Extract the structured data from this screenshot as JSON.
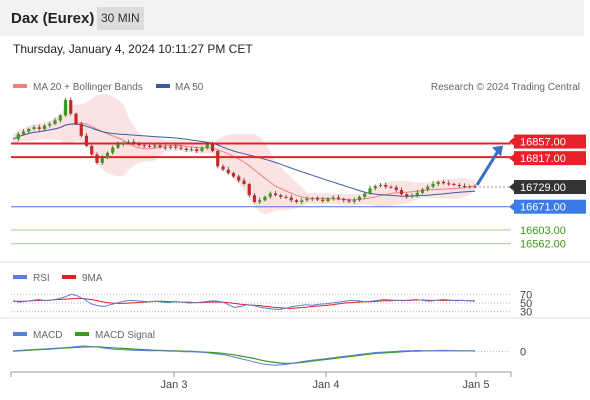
{
  "header": {
    "title": "Dax (Eurex)",
    "interval_button": "30 MIN"
  },
  "datetime": "Thursday, January 4, 2024 10:11:27 PM CET",
  "legend": {
    "bollinger_label": "MA 20 + Bollinger Bands",
    "ma50_label": "MA 50",
    "credit": "Research © 2024 Trading Central",
    "colors": {
      "bollinger": "#f08080",
      "ma50": "#3a5fa0"
    }
  },
  "rsi_legend": {
    "rsi_label": "RSI",
    "ma_label": "9MA",
    "rsi_color": "#5b7fd8",
    "ma_color": "#dd2222"
  },
  "macd_legend": {
    "macd_label": "MACD",
    "signal_label": "MACD Signal",
    "macd_color": "#5b7fd8",
    "signal_color": "#3a9a1a"
  },
  "chart_data": [
    {
      "type": "candlestick",
      "title": "Dax (Eurex)",
      "interval": "30 MIN",
      "ylim": [
        16520,
        17000
      ],
      "x_ticks": [
        "Jan 3",
        "Jan 4",
        "Jan 5"
      ],
      "price_path": [
        16870,
        16885,
        16892,
        16900,
        16905,
        16900,
        16910,
        16915,
        16925,
        16940,
        16985,
        16945,
        16915,
        16880,
        16850,
        16825,
        16800,
        16815,
        16830,
        16845,
        16855,
        16860,
        16862,
        16858,
        16852,
        16850,
        16848,
        16852,
        16846,
        16844,
        16848,
        16845,
        16842,
        16838,
        16840,
        16835,
        16845,
        16855,
        16835,
        16790,
        16780,
        16770,
        16760,
        16748,
        16738,
        16705,
        16685,
        16690,
        16700,
        16710,
        16705,
        16700,
        16698,
        16690,
        16685,
        16690,
        16694,
        16696,
        16692,
        16688,
        16695,
        16698,
        16694,
        16690,
        16686,
        16690,
        16700,
        16710,
        16725,
        16732,
        16735,
        16730,
        16728,
        16720,
        16708,
        16700,
        16704,
        16712,
        16722,
        16730,
        16738,
        16744,
        16740,
        16738,
        16735,
        16732,
        16730,
        16731,
        16729
      ],
      "levels": {
        "resistance": [
          16857.0,
          16817.0
        ],
        "current_price": 16729.0,
        "ma50_level": 16671.0,
        "support": [
          16603.0,
          16562.0
        ]
      },
      "level_labels": {
        "r1": "16857.00",
        "r2": "16817.00",
        "current": "16729.00",
        "ma50": "16671.00",
        "s1": "16603.00",
        "s2": "16562.00"
      },
      "level_colors": {
        "resistance": "#e8202a",
        "current": "#333333",
        "ma50": "#3b7be8",
        "support": "#3a9a1a"
      },
      "projection": "up"
    },
    {
      "type": "line",
      "name": "RSI",
      "y_ticks": [
        "70",
        "50",
        "30"
      ],
      "ylim": [
        20,
        80
      ],
      "rsi": [
        55,
        52,
        54,
        56,
        58,
        55,
        57,
        60,
        64,
        70,
        66,
        58,
        48,
        44,
        42,
        46,
        50,
        54,
        56,
        55,
        54,
        53,
        54,
        52,
        51,
        53,
        52,
        50,
        51,
        52,
        54,
        55,
        53,
        47,
        40,
        42,
        46,
        44,
        40,
        38,
        36,
        35,
        38,
        42,
        44,
        46,
        45,
        47,
        48,
        50,
        52,
        54,
        56,
        55,
        53,
        54,
        56,
        58,
        57,
        56,
        55,
        57,
        58,
        56,
        54,
        56,
        58,
        57,
        55,
        56,
        55,
        54
      ],
      "ma9": [
        54,
        54,
        54,
        55,
        56,
        56,
        57,
        58,
        59,
        60,
        61,
        60,
        58,
        55,
        52,
        50,
        49,
        49,
        50,
        51,
        52,
        53,
        54,
        54,
        53,
        53,
        52,
        52,
        51,
        51,
        52,
        52,
        52,
        51,
        49,
        47,
        46,
        45,
        44,
        42,
        40,
        39,
        38,
        38,
        39,
        40,
        42,
        43,
        44,
        46,
        48,
        50,
        51,
        52,
        53,
        53,
        54,
        55,
        55,
        56,
        56,
        56,
        57,
        57,
        56,
        56,
        56,
        56,
        56,
        56,
        55,
        55
      ]
    },
    {
      "type": "line",
      "name": "MACD",
      "y_ticks": [
        "0"
      ],
      "ylim": [
        -40,
        20
      ],
      "macd": [
        2,
        3,
        4,
        5,
        6,
        7,
        8,
        9,
        10,
        12,
        13,
        12,
        10,
        8,
        6,
        5,
        4,
        3,
        3,
        2,
        2,
        2,
        1,
        1,
        0,
        0,
        -1,
        -2,
        -4,
        -6,
        -8,
        -12,
        -16,
        -20,
        -24,
        -28,
        -30,
        -31,
        -30,
        -28,
        -25,
        -22,
        -20,
        -18,
        -16,
        -14,
        -12,
        -10,
        -8,
        -6,
        -4,
        -2,
        -1,
        0,
        1,
        2,
        2,
        3,
        2,
        2,
        3,
        3,
        2,
        2,
        2,
        1
      ],
      "signal": [
        1,
        2,
        3,
        4,
        5,
        6,
        7,
        8,
        9,
        10,
        11,
        11,
        11,
        10,
        9,
        8,
        7,
        6,
        5,
        4,
        3,
        3,
        2,
        2,
        1,
        1,
        0,
        -1,
        -2,
        -3,
        -5,
        -7,
        -10,
        -13,
        -16,
        -20,
        -23,
        -25,
        -27,
        -27,
        -26,
        -24,
        -22,
        -20,
        -18,
        -16,
        -14,
        -12,
        -10,
        -8,
        -6,
        -4,
        -3,
        -2,
        -1,
        0,
        1,
        1,
        2,
        2,
        2,
        2,
        2,
        2,
        2,
        2
      ]
    }
  ]
}
